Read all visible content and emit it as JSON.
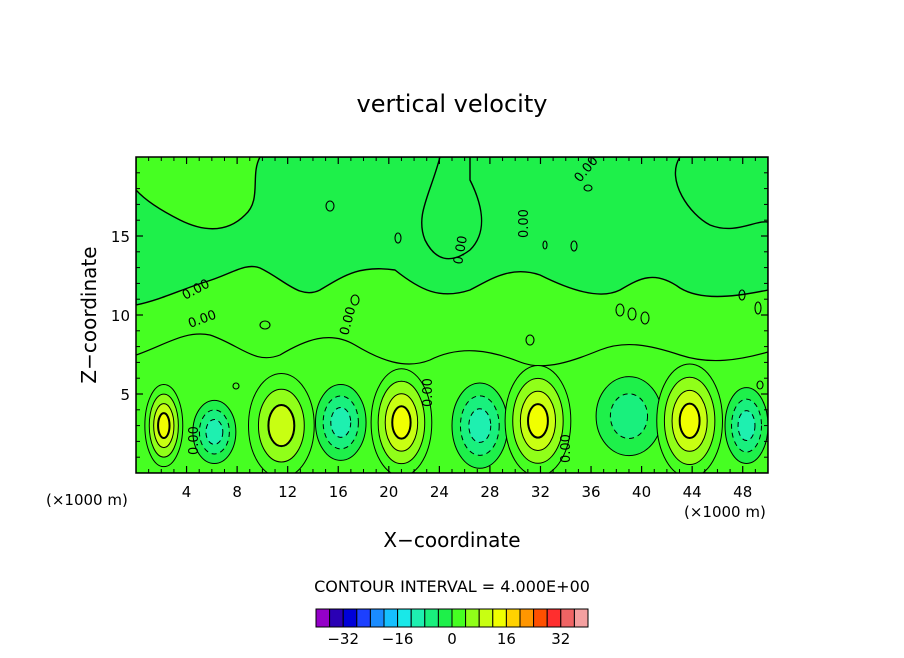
{
  "chart_data": {
    "type": "heatmap",
    "title": "vertical velocity",
    "xlabel": "X−coordinate",
    "ylabel": "Z−coordinate",
    "x_unit_left": "(×1000 m)",
    "x_unit_right": "(×1000 m)",
    "xlim": [
      0,
      50
    ],
    "ylim": [
      0,
      20
    ],
    "x_ticks": [
      4,
      8,
      12,
      16,
      20,
      24,
      28,
      32,
      36,
      40,
      44,
      48
    ],
    "y_ticks": [
      5,
      10,
      15
    ],
    "contour_interval_text": "CONTOUR INTERVAL = 4.000E+00",
    "contour_interval": 4,
    "contour_labels": [
      "0.00",
      "0.00",
      "0.00",
      "0.00",
      "0.00",
      "0.00",
      "0.00",
      "0.00",
      "0.00"
    ],
    "cells": [
      {
        "x": 2.2,
        "z": 3.0,
        "rx": 1.5,
        "rz": 2.6,
        "peak": 12
      },
      {
        "x": 6.2,
        "z": 2.6,
        "rx": 1.7,
        "rz": 2.0,
        "peak": -6
      },
      {
        "x": 11.5,
        "z": 3.0,
        "rx": 2.6,
        "rz": 3.3,
        "peak": 6
      },
      {
        "x": 16.2,
        "z": 3.2,
        "rx": 2.0,
        "rz": 2.4,
        "peak": -8
      },
      {
        "x": 21.0,
        "z": 3.2,
        "rx": 2.4,
        "rz": 3.4,
        "peak": 12
      },
      {
        "x": 27.2,
        "z": 3.0,
        "rx": 2.2,
        "rz": 2.7,
        "peak": -7
      },
      {
        "x": 31.8,
        "z": 3.3,
        "rx": 2.6,
        "rz": 3.5,
        "peak": 12
      },
      {
        "x": 39.0,
        "z": 3.6,
        "rx": 2.6,
        "rz": 2.5,
        "peak": -4
      },
      {
        "x": 43.8,
        "z": 3.3,
        "rx": 2.6,
        "rz": 3.6,
        "peak": 12
      },
      {
        "x": 48.3,
        "z": 3.0,
        "rx": 1.7,
        "rz": 2.4,
        "peak": -8
      }
    ],
    "colorbar": {
      "values": [
        -36,
        -32,
        -28,
        -24,
        -20,
        -16,
        -12,
        -8,
        -4,
        0,
        4,
        8,
        12,
        16,
        20,
        24,
        28,
        32,
        36
      ],
      "labels": [
        "−32",
        "−16",
        "0",
        "16",
        "32"
      ],
      "label_values": [
        -32,
        -16,
        0,
        16,
        32
      ],
      "colors": [
        "#9400c8",
        "#2a00b4",
        "#0000d8",
        "#1c40ff",
        "#1a8cff",
        "#15c0ff",
        "#19e8e8",
        "#1ef0b0",
        "#19f07d",
        "#1ef04a",
        "#46ff22",
        "#90ff19",
        "#c8ff12",
        "#f0ff00",
        "#ffd200",
        "#ff9600",
        "#ff5000",
        "#ff2e2e",
        "#f06464",
        "#f4a0a0"
      ]
    }
  }
}
